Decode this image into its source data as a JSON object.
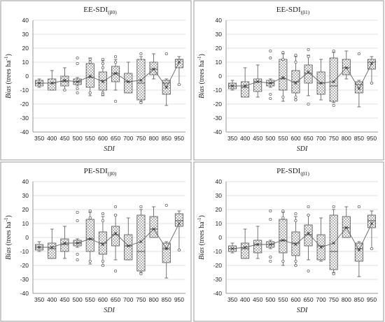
{
  "chart_data": [
    {
      "type": "boxplot",
      "title_main": "EE-SDI",
      "title_sub": "(β0)",
      "ylabel_main": "Bias",
      "ylabel_rest": " (trees ha",
      "ylabel_sup": "-1",
      "ylabel_end": ")",
      "xlabel": "SDI",
      "categories": [
        "350",
        "400",
        "450",
        "500",
        "550",
        "600",
        "650",
        "700",
        "750",
        "800",
        "850",
        "950"
      ],
      "ylim": [
        -40,
        40
      ],
      "yticks": [
        -40,
        -30,
        -20,
        -10,
        0,
        10,
        20,
        30,
        40
      ],
      "grid": true,
      "boxes": [
        {
          "min": -8,
          "q1": -7,
          "median": -5,
          "q3": -3,
          "max": -2,
          "mean": -5,
          "outliers": []
        },
        {
          "min": -10,
          "q1": -10,
          "median": -5,
          "q3": -2,
          "max": 4,
          "mean": -5,
          "outliers": []
        },
        {
          "min": -10,
          "q1": -7,
          "median": -4,
          "q3": 0,
          "max": 6,
          "mean": -3,
          "outliers": [
            -10
          ]
        },
        {
          "min": -7,
          "q1": -6,
          "median": -4,
          "q3": -2,
          "max": -1,
          "mean": -4,
          "outliers": [
            13,
            9,
            -9,
            -12
          ]
        },
        {
          "min": -14,
          "q1": -8,
          "median": -1,
          "q3": 9,
          "max": 13,
          "mean": 0,
          "outliers": [
            12,
            10,
            -12
          ]
        },
        {
          "min": -14,
          "q1": -10,
          "median": -3,
          "q3": 3,
          "max": 11,
          "mean": -4,
          "outliers": [
            12,
            9,
            6,
            -12,
            -13
          ]
        },
        {
          "min": -10,
          "q1": -4,
          "median": 2,
          "q3": 7,
          "max": 12,
          "mean": 2,
          "outliers": [
            14,
            10,
            -18
          ]
        },
        {
          "min": -12,
          "q1": -12,
          "median": -4,
          "q3": 2,
          "max": 10,
          "mean": -4,
          "outliers": []
        },
        {
          "min": -18,
          "q1": -17,
          "median": -5,
          "q3": 12,
          "max": 14,
          "mean": -3,
          "outliers": [
            16,
            -19
          ]
        },
        {
          "min": -2,
          "q1": 1,
          "median": 5,
          "q3": 10,
          "max": 16,
          "mean": 5,
          "outliers": []
        },
        {
          "min": -21,
          "q1": -13,
          "median": -5,
          "q3": -3,
          "max": -2,
          "mean": -8,
          "outliers": [
            16
          ]
        },
        {
          "min": -6,
          "q1": 6,
          "median": 12,
          "q3": 12,
          "max": 14,
          "mean": 10,
          "outliers": [
            -6
          ]
        }
      ]
    },
    {
      "type": "boxplot",
      "title_main": "EE-SDI",
      "title_sub": "(β1)",
      "ylabel_main": "Bias",
      "ylabel_rest": " (trees ha",
      "ylabel_sup": "-1",
      "ylabel_end": ")",
      "xlabel": "SDI",
      "categories": [
        "350",
        "400",
        "450",
        "500",
        "550",
        "600",
        "650",
        "700",
        "750",
        "800",
        "850",
        "950"
      ],
      "ylim": [
        -40,
        40
      ],
      "yticks": [
        -40,
        -30,
        -20,
        -10,
        0,
        10,
        20,
        30,
        40
      ],
      "grid": true,
      "boxes": [
        {
          "min": -10,
          "q1": -9,
          "median": -7,
          "q3": -5,
          "max": -3,
          "mean": -7,
          "outliers": []
        },
        {
          "min": -15,
          "q1": -15,
          "median": -8,
          "q3": -4,
          "max": 6,
          "mean": -7,
          "outliers": []
        },
        {
          "min": -15,
          "q1": -11,
          "median": -4,
          "q3": -2,
          "max": 8,
          "mean": -4,
          "outliers": []
        },
        {
          "min": -8,
          "q1": -7,
          "median": -5,
          "q3": -3,
          "max": -2,
          "mean": -5,
          "outliers": [
            18,
            13,
            -13,
            -16
          ]
        },
        {
          "min": -18,
          "q1": -10,
          "median": -2,
          "q3": 12,
          "max": 16,
          "mean": -1,
          "outliers": [
            17,
            12,
            -15
          ]
        },
        {
          "min": -17,
          "q1": -12,
          "median": -4,
          "q3": 4,
          "max": 14,
          "mean": -5,
          "outliers": [
            15,
            10,
            -15,
            -17
          ]
        },
        {
          "min": -14,
          "q1": -5,
          "median": 2,
          "q3": 8,
          "max": 15,
          "mean": 3,
          "outliers": [
            19,
            14,
            -20
          ]
        },
        {
          "min": -17,
          "q1": -13,
          "median": -5,
          "q3": 3,
          "max": 12,
          "mean": -5,
          "outliers": []
        },
        {
          "min": -19,
          "q1": -18,
          "median": -7,
          "q3": 13,
          "max": 17,
          "mean": -4,
          "outliers": [
            18,
            -21
          ]
        },
        {
          "min": -2,
          "q1": 1,
          "median": 6,
          "q3": 12,
          "max": 18,
          "mean": 6,
          "outliers": []
        },
        {
          "min": -22,
          "q1": -12,
          "median": -6,
          "q3": -4,
          "max": -3,
          "mean": -9,
          "outliers": [
            16
          ]
        },
        {
          "min": -5,
          "q1": 5,
          "median": 10,
          "q3": 12,
          "max": 14,
          "mean": 9,
          "outliers": [
            -5
          ]
        }
      ]
    },
    {
      "type": "boxplot",
      "title_main": "PE-SDI",
      "title_sub": "(β0)",
      "ylabel_main": "Bias",
      "ylabel_rest": " (trees ha",
      "ylabel_sup": "-1",
      "ylabel_end": ")",
      "xlabel": "SDI",
      "categories": [
        "350",
        "400",
        "450",
        "500",
        "550",
        "600",
        "650",
        "700",
        "750",
        "800",
        "850",
        "950"
      ],
      "ylim": [
        -40,
        40
      ],
      "yticks": [
        -40,
        -30,
        -20,
        -10,
        0,
        10,
        20,
        30,
        40
      ],
      "grid": true,
      "boxes": [
        {
          "min": -10,
          "q1": -9,
          "median": -7,
          "q3": -5,
          "max": -3,
          "mean": -7,
          "outliers": []
        },
        {
          "min": -15,
          "q1": -15,
          "median": -8,
          "q3": -4,
          "max": 6,
          "mean": -7,
          "outliers": []
        },
        {
          "min": -15,
          "q1": -10,
          "median": -5,
          "q3": -1,
          "max": 8,
          "mean": -4,
          "outliers": []
        },
        {
          "min": -7,
          "q1": -6,
          "median": -4,
          "q3": -2,
          "max": -1,
          "mean": -4,
          "outliers": [
            18,
            12,
            -12,
            -16
          ]
        },
        {
          "min": -19,
          "q1": -10,
          "median": -1,
          "q3": 13,
          "max": 18,
          "mean": -1,
          "outliers": [
            19,
            14,
            -17
          ]
        },
        {
          "min": -20,
          "q1": -12,
          "median": -4,
          "q3": 4,
          "max": 15,
          "mean": -5,
          "outliers": [
            17,
            12,
            -17,
            -20
          ]
        },
        {
          "min": -16,
          "q1": -6,
          "median": 2,
          "q3": 8,
          "max": 16,
          "mean": 3,
          "outliers": [
            22,
            16,
            -24
          ]
        },
        {
          "min": -16,
          "q1": -16,
          "median": -6,
          "q3": 2,
          "max": 14,
          "mean": -6,
          "outliers": []
        },
        {
          "min": -25,
          "q1": -24,
          "median": -10,
          "q3": 16,
          "max": 20,
          "mean": -3,
          "outliers": [
            22,
            -26
          ]
        },
        {
          "min": 0,
          "q1": 0,
          "median": 6,
          "q3": 15,
          "max": 22,
          "mean": 6,
          "outliers": []
        },
        {
          "min": -29,
          "q1": -18,
          "median": -8,
          "q3": -4,
          "max": -3,
          "mean": -8,
          "outliers": [
            23
          ]
        },
        {
          "min": -9,
          "q1": 8,
          "median": 12,
          "q3": 17,
          "max": 19,
          "mean": 10,
          "outliers": [
            -9
          ]
        }
      ]
    },
    {
      "type": "boxplot",
      "title_main": "PE-SDI",
      "title_sub": "(β1)",
      "ylabel_main": "Bias",
      "ylabel_rest": " (trees ha",
      "ylabel_sup": "-1",
      "ylabel_end": ")",
      "xlabel": "SDI",
      "categories": [
        "350",
        "400",
        "450",
        "500",
        "550",
        "600",
        "650",
        "700",
        "750",
        "800",
        "850",
        "950"
      ],
      "ylim": [
        -40,
        40
      ],
      "yticks": [
        -40,
        -30,
        -20,
        -10,
        0,
        10,
        20,
        30,
        40
      ],
      "grid": true,
      "boxes": [
        {
          "min": -11,
          "q1": -10,
          "median": -8,
          "q3": -6,
          "max": -4,
          "mean": -8,
          "outliers": []
        },
        {
          "min": -15,
          "q1": -15,
          "median": -8,
          "q3": -4,
          "max": 6,
          "mean": -7,
          "outliers": []
        },
        {
          "min": -15,
          "q1": -11,
          "median": -5,
          "q3": -2,
          "max": 8,
          "mean": -5,
          "outliers": []
        },
        {
          "min": -8,
          "q1": -7,
          "median": -5,
          "q3": -3,
          "max": -2,
          "mean": -5,
          "outliers": [
            19,
            13,
            -14,
            -17
          ]
        },
        {
          "min": -20,
          "q1": -11,
          "median": -2,
          "q3": 13,
          "max": 18,
          "mean": -2,
          "outliers": [
            19,
            14,
            -17
          ]
        },
        {
          "min": -20,
          "q1": -13,
          "median": -4,
          "q3": 4,
          "max": 15,
          "mean": -5,
          "outliers": [
            17,
            12,
            -17,
            -20
          ]
        },
        {
          "min": -16,
          "q1": -6,
          "median": 2,
          "q3": 9,
          "max": 16,
          "mean": 3,
          "outliers": [
            22,
            16,
            -24
          ]
        },
        {
          "min": -17,
          "q1": -16,
          "median": -6,
          "q3": 2,
          "max": 14,
          "mean": -7,
          "outliers": []
        },
        {
          "min": -25,
          "q1": -23,
          "median": -10,
          "q3": 16,
          "max": 20,
          "mean": -4,
          "outliers": [
            22,
            -26
          ]
        },
        {
          "min": 0,
          "q1": 0,
          "median": 7,
          "q3": 15,
          "max": 22,
          "mean": 7,
          "outliers": []
        },
        {
          "min": -28,
          "q1": -17,
          "median": -8,
          "q3": -4,
          "max": -3,
          "mean": -9,
          "outliers": [
            22
          ]
        },
        {
          "min": -8,
          "q1": 7,
          "median": 12,
          "q3": 16,
          "max": 19,
          "mean": 10,
          "outliers": [
            -8
          ]
        }
      ]
    }
  ]
}
